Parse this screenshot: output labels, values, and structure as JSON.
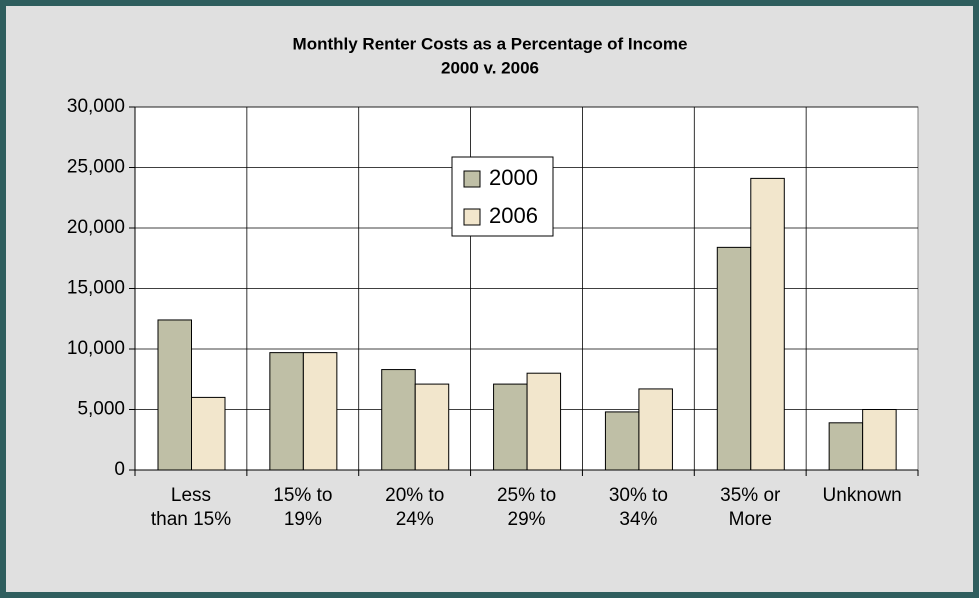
{
  "chart_data": {
    "type": "bar",
    "title": "Monthly Renter Costs as a Percentage of Income",
    "subtitle": "2000 v. 2006",
    "categories": [
      "Less\nthan 15%",
      "15% to\n19%",
      "20% to\n24%",
      "25% to\n29%",
      "30% to\n34%",
      "35% or\nMore",
      "Unknown"
    ],
    "series": [
      {
        "name": "2000",
        "color": "#bfbfa6",
        "values": [
          12400,
          9700,
          8300,
          7100,
          4800,
          18400,
          3900
        ]
      },
      {
        "name": "2006",
        "color": "#f2e6cc",
        "values": [
          6000,
          9700,
          7100,
          8000,
          6700,
          24100,
          5000
        ]
      }
    ],
    "ylim": [
      0,
      30000
    ],
    "yticks": [
      0,
      {
        "value": 5000,
        "label": "5,000"
      },
      {
        "value": 10000,
        "label": "10,000"
      },
      {
        "value": 15000,
        "label": "15,000"
      },
      {
        "value": 20000,
        "label": "20,000"
      },
      {
        "value": 25000,
        "label": "25,000"
      },
      {
        "value": 30000,
        "label": "30,000"
      }
    ],
    "grid": true
  }
}
